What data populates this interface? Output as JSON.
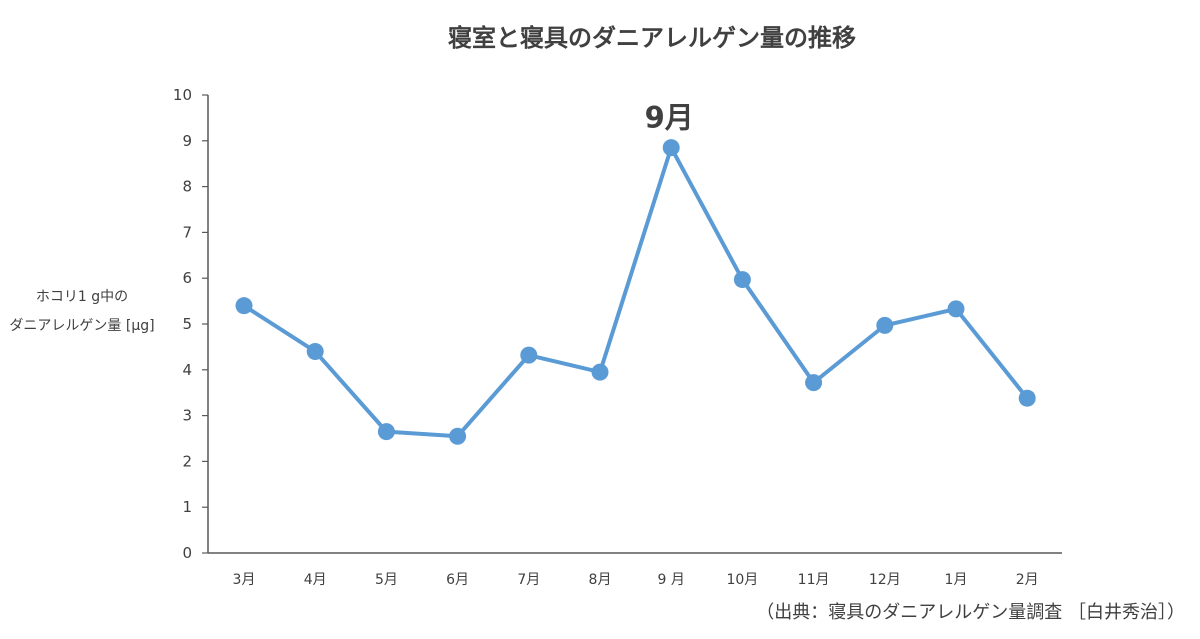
{
  "chart_data": {
    "type": "line",
    "title": "寝室と寝具のダニアレルゲン量の推移",
    "ylabel_lines": [
      "ホコリ1 g中の",
      "ダニアレルゲン量 [μg]"
    ],
    "xlabel": "",
    "categories": [
      "3月",
      "4月",
      "5月",
      "6月",
      "7月",
      "8月",
      "9 月",
      "10月",
      "11月",
      "12月",
      "1月",
      "2月"
    ],
    "values": [
      5.4,
      4.4,
      2.65,
      2.55,
      4.32,
      3.95,
      8.85,
      5.97,
      3.72,
      4.97,
      5.33,
      3.38
    ],
    "ylim": [
      0,
      10
    ],
    "yticks": [
      0,
      1,
      2,
      3,
      4,
      5,
      6,
      7,
      8,
      9,
      10
    ],
    "grid": false,
    "annotation": {
      "text": "9月",
      "category_index": 6
    },
    "source": "（出典：寝具のダニアレルゲン量調査 ［白井秀治］）",
    "series_color": "#5B9BD5",
    "axis_color": "#595959",
    "text_color": "#404040"
  }
}
